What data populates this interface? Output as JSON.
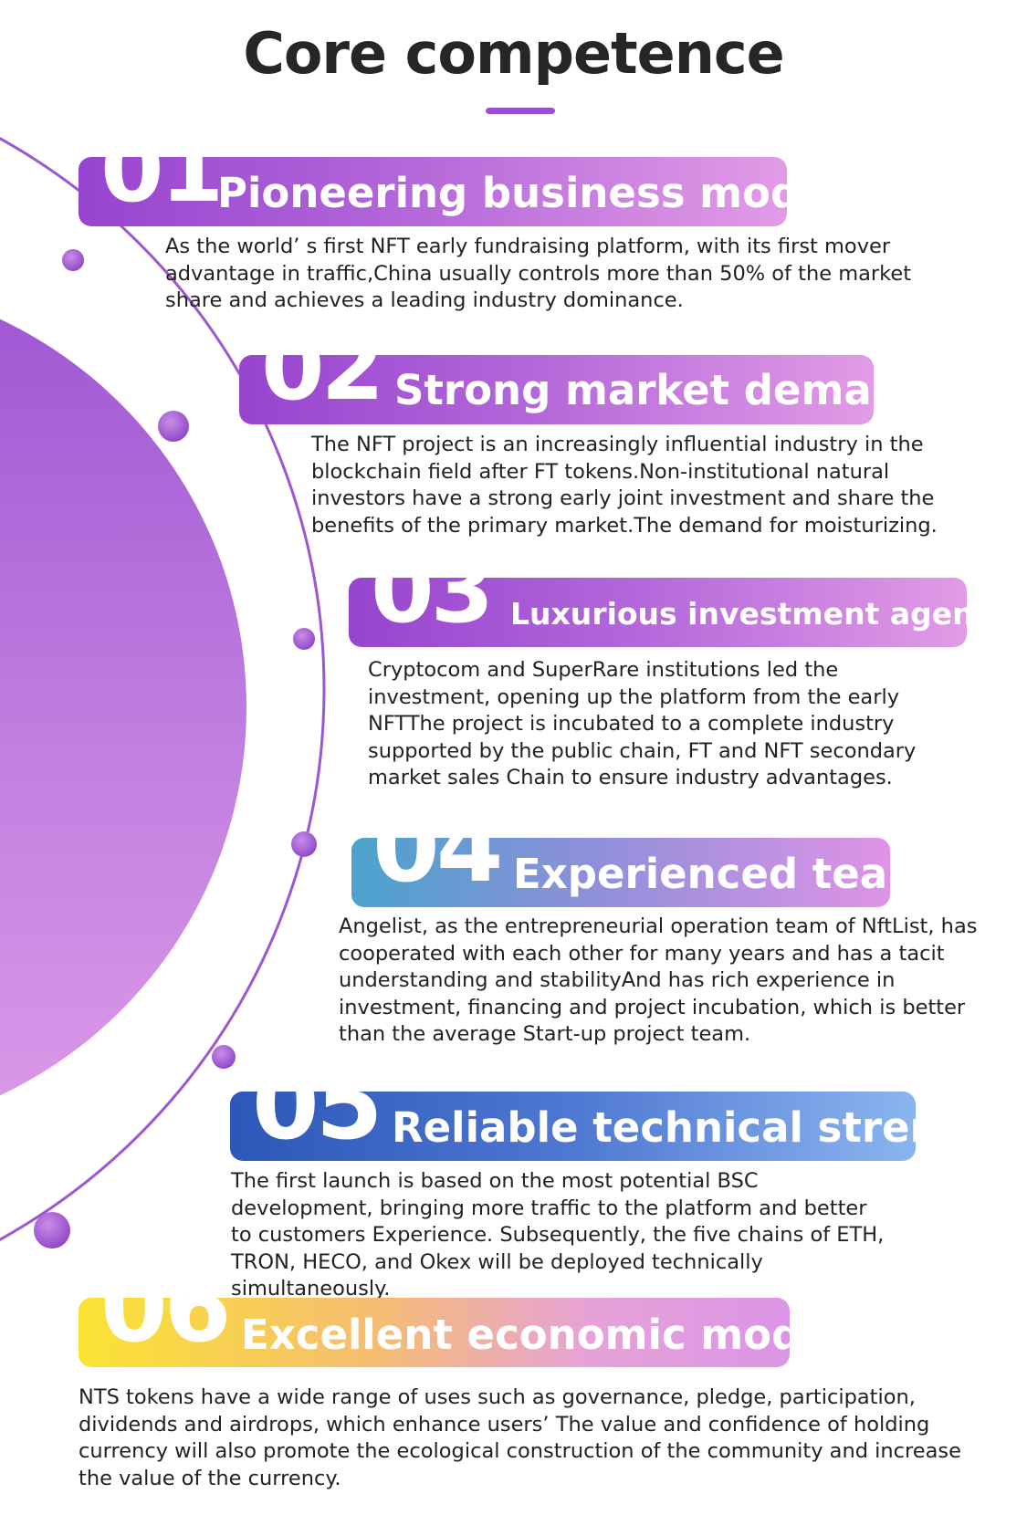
{
  "title": "Core competence",
  "colors": {
    "accent": "#9a4fd0",
    "purple_start": "#9744cf",
    "purple_end": "#e29be6",
    "teal_start": "#4aa3cc",
    "blue_start": "#2d57b8",
    "yellow_start": "#fbe333",
    "text": "#222222"
  },
  "sections": [
    {
      "number": "01",
      "heading": "Pioneering business model",
      "text": "As the world’  s first NFT early fundraising platform, with its first mover advantage in traffic,China usually controls more than 50% of the market share and achieves a leading industry dominance."
    },
    {
      "number": "02",
      "heading": "Strong market demand",
      "text": "The NFT project is an increasingly influential industry in the blockchain field after FT tokens.Non-institutional natural investors have a strong early joint investment and share the benefits of the primary market.The demand for moisturizing."
    },
    {
      "number": "03",
      "heading": "Luxurious investment agency",
      "text": "Cryptocom and SuperRare institutions led the investment, opening up the platform from the early NFTThe project is incubated to a complete industry supported by the public chain, FT and NFT secondary market sales Chain to ensure industry advantages."
    },
    {
      "number": "04",
      "heading": "Experienced team",
      "text": "Angelist, as the entrepreneurial operation team of NftList, has cooperated with each other for many years and has a tacit understanding and stabilityAnd has rich experience in investment, financing and project incubation, which is better than the average Start-up project team."
    },
    {
      "number": "05",
      "heading": "Reliable technical strength",
      "text": "The first launch is based on the most potential BSC development, bringing more traffic to the platform and better to customers Experience. Subsequently, the five chains of ETH, TRON, HECO, and Okex will be deployed technically simultaneously."
    },
    {
      "number": "06",
      "heading": "Excellent economic model",
      "text": "NTS tokens have a wide range of uses such as governance, pledge, participation, dividends and airdrops, which enhance users’  The value and confidence of holding currency will also promote the ecological construction of the community and increase the value of the currency."
    }
  ]
}
